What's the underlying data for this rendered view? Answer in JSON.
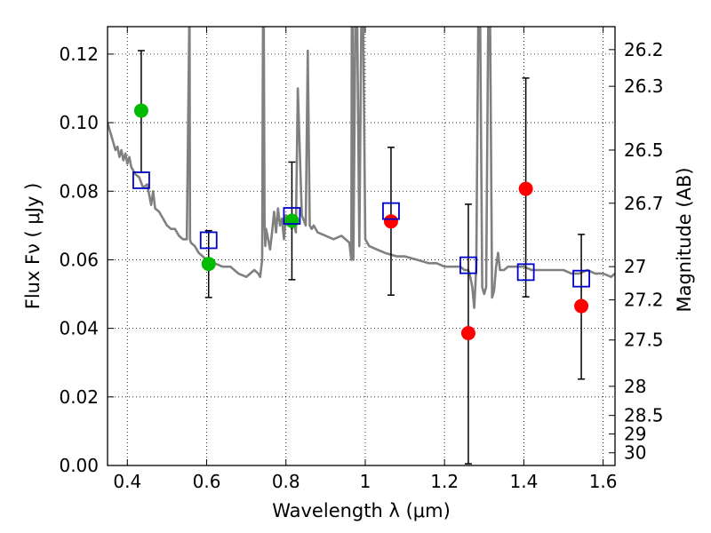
{
  "chart_data": {
    "type": "scatter",
    "xlabel": "Wavelength  λ (μm)",
    "ylabel": "Flux  Fν  ( μJy )",
    "ylabel_right": "Magnitude (AB)",
    "xlim": [
      0.35,
      1.63
    ],
    "ylim": [
      0.0,
      0.128
    ],
    "grid": true,
    "x_ticks": [
      0.4,
      0.6,
      0.8,
      1.0,
      1.2,
      1.4,
      1.6
    ],
    "x_tick_labels": [
      "0.4",
      "0.6",
      "0.8",
      "1",
      "1.2",
      "1.4",
      "1.6"
    ],
    "y_ticks": [
      0.0,
      0.02,
      0.04,
      0.06,
      0.08,
      0.1,
      0.12
    ],
    "y_tick_labels": [
      "0.00",
      "0.02",
      "0.04",
      "0.06",
      "0.08",
      "0.10",
      "0.12"
    ],
    "right_ticks": [
      {
        "label": "26.2",
        "flux": 0.1213
      },
      {
        "label": "26.3",
        "flux": 0.1106
      },
      {
        "label": "26.5",
        "flux": 0.092
      },
      {
        "label": "26.7",
        "flux": 0.0765
      },
      {
        "label": "27",
        "flux": 0.058
      },
      {
        "label": "27.2",
        "flux": 0.0483
      },
      {
        "label": "27.5",
        "flux": 0.0366
      },
      {
        "label": "28",
        "flux": 0.0231
      },
      {
        "label": "28.5",
        "flux": 0.0146
      },
      {
        "label": "29",
        "flux": 0.0092
      },
      {
        "label": "30",
        "flux": 0.0037
      }
    ],
    "series": [
      {
        "kind": "model-spectrum",
        "color": "#808080",
        "x": [
          0.35,
          0.355,
          0.36,
          0.365,
          0.37,
          0.375,
          0.38,
          0.385,
          0.39,
          0.395,
          0.4,
          0.405,
          0.41,
          0.42,
          0.43,
          0.44,
          0.45,
          0.46,
          0.465,
          0.47,
          0.48,
          0.49,
          0.5,
          0.51,
          0.52,
          0.53,
          0.54,
          0.55,
          0.556,
          0.557,
          0.558,
          0.56,
          0.57,
          0.58,
          0.59,
          0.6,
          0.62,
          0.64,
          0.66,
          0.68,
          0.7,
          0.72,
          0.73,
          0.735,
          0.74,
          0.742,
          0.744,
          0.746,
          0.748,
          0.75,
          0.755,
          0.76,
          0.765,
          0.77,
          0.775,
          0.78,
          0.785,
          0.79,
          0.795,
          0.8,
          0.805,
          0.81,
          0.815,
          0.82,
          0.825,
          0.83,
          0.84,
          0.85,
          0.855,
          0.86,
          0.865,
          0.87,
          0.88,
          0.9,
          0.92,
          0.94,
          0.96,
          0.965,
          0.966,
          0.968,
          0.97,
          0.975,
          0.98,
          0.985,
          0.99,
          0.995,
          1.0,
          1.005,
          1.01,
          1.03,
          1.05,
          1.08,
          1.1,
          1.13,
          1.16,
          1.18,
          1.2,
          1.22,
          1.24,
          1.25,
          1.26,
          1.265,
          1.27,
          1.275,
          1.28,
          1.285,
          1.29,
          1.295,
          1.3,
          1.305,
          1.31,
          1.315,
          1.32,
          1.325,
          1.33,
          1.335,
          1.34,
          1.35,
          1.36,
          1.38,
          1.4,
          1.42,
          1.44,
          1.46,
          1.48,
          1.5,
          1.52,
          1.54,
          1.56,
          1.58,
          1.6,
          1.62,
          1.63
        ],
        "y": [
          0.1,
          0.098,
          0.096,
          0.094,
          0.092,
          0.093,
          0.09,
          0.092,
          0.089,
          0.091,
          0.088,
          0.09,
          0.087,
          0.085,
          0.084,
          0.081,
          0.082,
          0.076,
          0.08,
          0.075,
          0.074,
          0.072,
          0.07,
          0.069,
          0.069,
          0.067,
          0.066,
          0.066,
          0.128,
          0.128,
          0.066,
          0.065,
          0.064,
          0.062,
          0.061,
          0.06,
          0.059,
          0.058,
          0.058,
          0.056,
          0.055,
          0.057,
          0.056,
          0.055,
          0.06,
          0.128,
          0.128,
          0.07,
          0.064,
          0.069,
          0.066,
          0.063,
          0.068,
          0.074,
          0.068,
          0.075,
          0.07,
          0.072,
          0.066,
          0.073,
          0.072,
          0.071,
          0.069,
          0.071,
          0.068,
          0.11,
          0.073,
          0.07,
          0.121,
          0.07,
          0.069,
          0.07,
          0.068,
          0.067,
          0.066,
          0.067,
          0.065,
          0.06,
          0.128,
          0.128,
          0.06,
          0.128,
          0.128,
          0.064,
          0.128,
          0.128,
          0.066,
          0.065,
          0.064,
          0.063,
          0.062,
          0.061,
          0.061,
          0.06,
          0.059,
          0.059,
          0.058,
          0.058,
          0.058,
          0.057,
          0.057,
          0.055,
          0.052,
          0.046,
          0.058,
          0.128,
          0.128,
          0.052,
          0.05,
          0.052,
          0.128,
          0.128,
          0.049,
          0.051,
          0.058,
          0.062,
          0.057,
          0.057,
          0.058,
          0.058,
          0.058,
          0.057,
          0.057,
          0.057,
          0.057,
          0.057,
          0.056,
          0.056,
          0.057,
          0.056,
          0.056,
          0.055,
          0.056
        ]
      },
      {
        "kind": "observed-detection",
        "color": "#00bb00",
        "x": [
          0.435,
          0.605,
          0.815
        ],
        "y": [
          0.1035,
          0.0588,
          0.0714
        ]
      },
      {
        "kind": "observed-upper",
        "color": "#ff0000",
        "x": [
          1.065,
          1.26,
          1.405,
          1.545
        ],
        "y": [
          0.0712,
          0.0386,
          0.0807,
          0.0465
        ]
      },
      {
        "kind": "model-bandpass",
        "color": "#0000cc",
        "x": [
          0.435,
          0.605,
          0.815,
          1.065,
          1.26,
          1.405,
          1.545
        ],
        "y": [
          0.0832,
          0.0657,
          0.0728,
          0.0742,
          0.0584,
          0.0564,
          0.0545
        ]
      }
    ],
    "error_bars": [
      {
        "x": 0.435,
        "low": 0.0855,
        "high": 0.121
      },
      {
        "x": 0.605,
        "low": 0.049,
        "high": 0.0685
      },
      {
        "x": 0.815,
        "low": 0.0542,
        "high": 0.0885
      },
      {
        "x": 1.065,
        "low": 0.0497,
        "high": 0.0928
      },
      {
        "x": 1.26,
        "low": 0.0005,
        "high": 0.0762
      },
      {
        "x": 1.405,
        "low": 0.0492,
        "high": 0.113
      },
      {
        "x": 1.545,
        "low": 0.0252,
        "high": 0.0674
      }
    ]
  }
}
